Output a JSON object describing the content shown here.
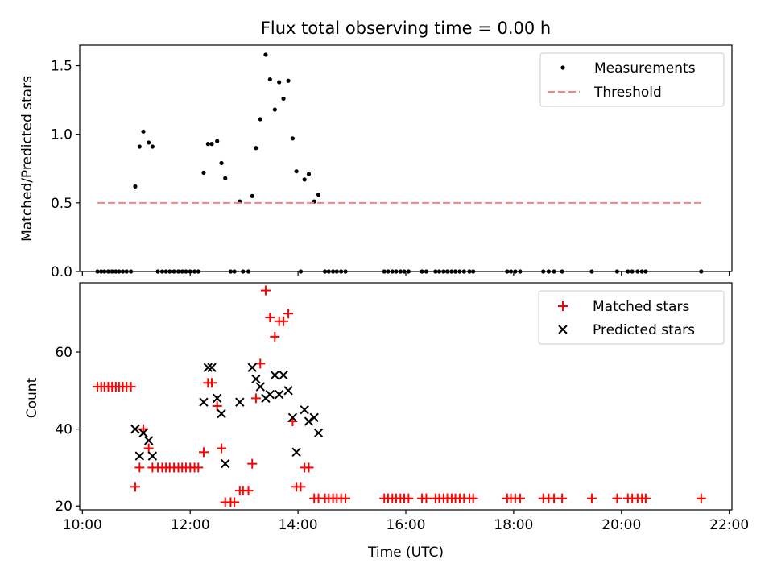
{
  "title": "Flux total observing time = 0.00 h",
  "chart_data": [
    {
      "type": "scatter",
      "ylabel": "Matched/Predicted stars",
      "xlabel": "",
      "xlim": [
        9.95,
        22.05
      ],
      "ylim": [
        0,
        1.65
      ],
      "x_tick_values": [
        10,
        12,
        14,
        16,
        18,
        20,
        22
      ],
      "y_ticks": [
        0.0,
        0.5,
        1.0,
        1.5
      ],
      "y_tick_labels": [
        "0.0",
        "0.5",
        "1.0",
        "1.5"
      ],
      "legend_position": "top-right",
      "legend": [
        "Measurements",
        "Threshold"
      ],
      "series": [
        {
          "name": "Measurements",
          "marker": "dot",
          "color": "#000000",
          "points": [
            [
              10.28,
              0
            ],
            [
              10.35,
              0
            ],
            [
              10.41,
              0
            ],
            [
              10.48,
              0
            ],
            [
              10.55,
              0
            ],
            [
              10.62,
              0
            ],
            [
              10.68,
              0
            ],
            [
              10.75,
              0
            ],
            [
              10.82,
              0
            ],
            [
              10.9,
              0
            ],
            [
              10.98,
              0.62
            ],
            [
              11.06,
              0.91
            ],
            [
              11.13,
              1.02
            ],
            [
              11.23,
              0.94
            ],
            [
              11.3,
              0.91
            ],
            [
              11.4,
              0
            ],
            [
              11.48,
              0
            ],
            [
              11.55,
              0
            ],
            [
              11.62,
              0
            ],
            [
              11.7,
              0
            ],
            [
              11.78,
              0
            ],
            [
              11.85,
              0
            ],
            [
              11.92,
              0
            ],
            [
              12.0,
              0
            ],
            [
              12.08,
              0
            ],
            [
              12.15,
              0
            ],
            [
              12.25,
              0.72
            ],
            [
              12.33,
              0.93
            ],
            [
              12.4,
              0.93
            ],
            [
              12.5,
              0.95
            ],
            [
              12.58,
              0.79
            ],
            [
              12.65,
              0.68
            ],
            [
              12.75,
              0
            ],
            [
              12.82,
              0
            ],
            [
              12.92,
              0.51
            ],
            [
              12.98,
              0
            ],
            [
              13.08,
              0
            ],
            [
              13.15,
              0.55
            ],
            [
              13.22,
              0.9
            ],
            [
              13.3,
              1.11
            ],
            [
              13.4,
              1.58
            ],
            [
              13.48,
              1.4
            ],
            [
              13.57,
              1.18
            ],
            [
              13.65,
              1.38
            ],
            [
              13.73,
              1.26
            ],
            [
              13.82,
              1.39
            ],
            [
              13.9,
              0.97
            ],
            [
              13.97,
              0.73
            ],
            [
              14.05,
              0
            ],
            [
              14.12,
              0.67
            ],
            [
              14.2,
              0.71
            ],
            [
              14.3,
              0.51
            ],
            [
              14.38,
              0.56
            ],
            [
              14.5,
              0
            ],
            [
              14.57,
              0
            ],
            [
              14.65,
              0
            ],
            [
              14.72,
              0
            ],
            [
              14.8,
              0
            ],
            [
              14.88,
              0
            ],
            [
              15.6,
              0
            ],
            [
              15.67,
              0
            ],
            [
              15.75,
              0
            ],
            [
              15.82,
              0
            ],
            [
              15.9,
              0
            ],
            [
              15.97,
              0
            ],
            [
              16.05,
              0
            ],
            [
              16.3,
              0
            ],
            [
              16.38,
              0
            ],
            [
              16.55,
              0
            ],
            [
              16.62,
              0
            ],
            [
              16.7,
              0
            ],
            [
              16.77,
              0
            ],
            [
              16.85,
              0
            ],
            [
              16.92,
              0
            ],
            [
              17.0,
              0
            ],
            [
              17.08,
              0
            ],
            [
              17.18,
              0
            ],
            [
              17.25,
              0
            ],
            [
              17.88,
              0
            ],
            [
              17.95,
              0
            ],
            [
              18.03,
              0
            ],
            [
              18.12,
              0
            ],
            [
              18.55,
              0
            ],
            [
              18.65,
              0
            ],
            [
              18.75,
              0
            ],
            [
              18.9,
              0
            ],
            [
              19.45,
              0
            ],
            [
              19.92,
              0
            ],
            [
              20.12,
              0
            ],
            [
              20.2,
              0
            ],
            [
              20.3,
              0
            ],
            [
              20.38,
              0
            ],
            [
              20.45,
              0
            ],
            [
              21.48,
              0
            ]
          ]
        },
        {
          "name": "Threshold",
          "marker": "dashed-line",
          "color": "#ff7f7f",
          "points": [
            [
              10.28,
              0.5
            ],
            [
              21.48,
              0.5
            ]
          ]
        }
      ]
    },
    {
      "type": "scatter",
      "xlabel": "Time (UTC)",
      "ylabel": "Count",
      "xlim": [
        9.95,
        22.05
      ],
      "ylim": [
        19,
        78
      ],
      "x_ticks": [
        10,
        12,
        14,
        16,
        18,
        20,
        22
      ],
      "x_tick_labels": [
        "10:00",
        "12:00",
        "14:00",
        "16:00",
        "18:00",
        "20:00",
        "22:00"
      ],
      "y_ticks": [
        20,
        40,
        60
      ],
      "y_tick_labels": [
        "20",
        "40",
        "60"
      ],
      "legend_position": "top-right",
      "legend": [
        "Matched stars",
        "Predicted stars"
      ],
      "series": [
        {
          "name": "Matched stars",
          "marker": "plus",
          "color": "#ff0000",
          "points": [
            [
              10.28,
              51
            ],
            [
              10.35,
              51
            ],
            [
              10.41,
              51
            ],
            [
              10.48,
              51
            ],
            [
              10.55,
              51
            ],
            [
              10.62,
              51
            ],
            [
              10.68,
              51
            ],
            [
              10.75,
              51
            ],
            [
              10.82,
              51
            ],
            [
              10.9,
              51
            ],
            [
              10.98,
              25
            ],
            [
              11.06,
              30
            ],
            [
              11.13,
              40
            ],
            [
              11.23,
              35
            ],
            [
              11.3,
              30
            ],
            [
              11.4,
              30
            ],
            [
              11.48,
              30
            ],
            [
              11.55,
              30
            ],
            [
              11.62,
              30
            ],
            [
              11.7,
              30
            ],
            [
              11.78,
              30
            ],
            [
              11.85,
              30
            ],
            [
              11.92,
              30
            ],
            [
              12.0,
              30
            ],
            [
              12.08,
              30
            ],
            [
              12.15,
              30
            ],
            [
              12.25,
              34
            ],
            [
              12.33,
              52
            ],
            [
              12.4,
              52
            ],
            [
              12.5,
              46
            ],
            [
              12.58,
              35
            ],
            [
              12.65,
              21
            ],
            [
              12.75,
              21
            ],
            [
              12.82,
              21
            ],
            [
              12.92,
              24
            ],
            [
              12.98,
              24
            ],
            [
              13.08,
              24
            ],
            [
              13.15,
              31
            ],
            [
              13.22,
              48
            ],
            [
              13.3,
              57
            ],
            [
              13.4,
              76
            ],
            [
              13.48,
              69
            ],
            [
              13.57,
              64
            ],
            [
              13.65,
              68
            ],
            [
              13.73,
              68
            ],
            [
              13.82,
              70
            ],
            [
              13.9,
              42
            ],
            [
              13.97,
              25
            ],
            [
              14.05,
              25
            ],
            [
              14.12,
              30
            ],
            [
              14.2,
              30
            ],
            [
              14.3,
              22
            ],
            [
              14.38,
              22
            ],
            [
              14.5,
              22
            ],
            [
              14.57,
              22
            ],
            [
              14.65,
              22
            ],
            [
              14.72,
              22
            ],
            [
              14.8,
              22
            ],
            [
              14.88,
              22
            ],
            [
              15.6,
              22
            ],
            [
              15.67,
              22
            ],
            [
              15.75,
              22
            ],
            [
              15.82,
              22
            ],
            [
              15.9,
              22
            ],
            [
              15.97,
              22
            ],
            [
              16.05,
              22
            ],
            [
              16.3,
              22
            ],
            [
              16.38,
              22
            ],
            [
              16.55,
              22
            ],
            [
              16.62,
              22
            ],
            [
              16.7,
              22
            ],
            [
              16.77,
              22
            ],
            [
              16.85,
              22
            ],
            [
              16.92,
              22
            ],
            [
              17.0,
              22
            ],
            [
              17.08,
              22
            ],
            [
              17.18,
              22
            ],
            [
              17.25,
              22
            ],
            [
              17.88,
              22
            ],
            [
              17.95,
              22
            ],
            [
              18.03,
              22
            ],
            [
              18.12,
              22
            ],
            [
              18.55,
              22
            ],
            [
              18.65,
              22
            ],
            [
              18.75,
              22
            ],
            [
              18.9,
              22
            ],
            [
              19.45,
              22
            ],
            [
              19.92,
              22
            ],
            [
              20.12,
              22
            ],
            [
              20.2,
              22
            ],
            [
              20.3,
              22
            ],
            [
              20.38,
              22
            ],
            [
              20.45,
              22
            ],
            [
              21.48,
              22
            ]
          ]
        },
        {
          "name": "Predicted stars",
          "marker": "x",
          "color": "#000000",
          "points": [
            [
              10.98,
              40
            ],
            [
              11.06,
              33
            ],
            [
              11.13,
              39
            ],
            [
              11.23,
              37
            ],
            [
              11.3,
              33
            ],
            [
              12.25,
              47
            ],
            [
              12.33,
              56
            ],
            [
              12.4,
              56
            ],
            [
              12.5,
              48
            ],
            [
              12.58,
              44
            ],
            [
              12.65,
              31
            ],
            [
              12.92,
              47
            ],
            [
              13.15,
              56
            ],
            [
              13.22,
              53
            ],
            [
              13.3,
              51
            ],
            [
              13.4,
              48
            ],
            [
              13.48,
              49
            ],
            [
              13.57,
              54
            ],
            [
              13.65,
              49
            ],
            [
              13.73,
              54
            ],
            [
              13.82,
              50
            ],
            [
              13.9,
              43
            ],
            [
              13.97,
              34
            ],
            [
              14.12,
              45
            ],
            [
              14.2,
              42
            ],
            [
              14.3,
              43
            ],
            [
              14.38,
              39
            ]
          ]
        }
      ]
    }
  ]
}
